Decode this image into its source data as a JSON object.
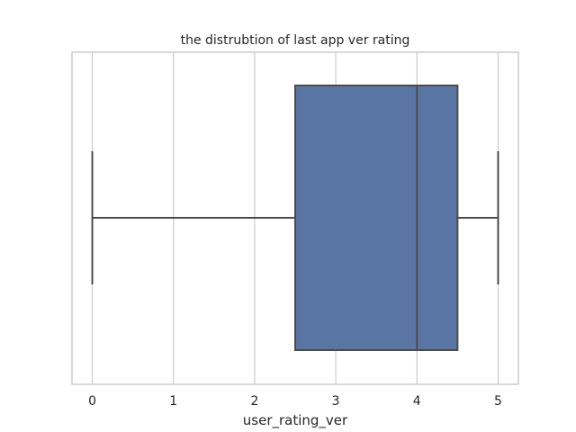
{
  "chart_data": {
    "type": "box",
    "title": "the distrubtion of last app ver rating",
    "xlabel": "user_rating_ver",
    "ylabel": "",
    "orientation": "horizontal",
    "xlim": [
      -0.25,
      5.25
    ],
    "xticks": [
      0,
      1,
      2,
      3,
      4,
      5
    ],
    "grid": "vertical",
    "series": [
      {
        "whisker_low": 0,
        "q1": 2.5,
        "median": 4,
        "q3": 4.5,
        "whisker_high": 5,
        "color": "#5975a4"
      }
    ]
  },
  "style": {
    "background": "#ffffff",
    "grid_color": "#cccccc",
    "spine_color": "#cccccc",
    "line_color": "#4c4c4c",
    "text_color": "#262626"
  }
}
